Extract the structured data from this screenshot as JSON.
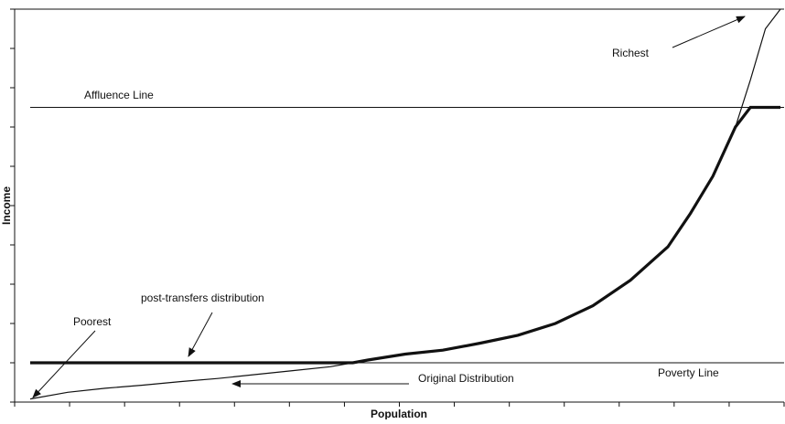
{
  "chart_data": {
    "type": "line",
    "xlabel": "Population",
    "ylabel": "Income",
    "xlim": [
      0,
      1
    ],
    "ylim": [
      0,
      10
    ],
    "x_ticks": [
      0,
      0.0714,
      0.1429,
      0.2143,
      0.2857,
      0.3571,
      0.4286,
      0.5,
      0.5714,
      0.6429,
      0.7143,
      0.7857,
      0.8571,
      0.9286,
      1.0
    ],
    "y_ticks": [
      0,
      1,
      2,
      3,
      4,
      5,
      6,
      7,
      8,
      9,
      10
    ],
    "grid": false,
    "legend": "none",
    "reference_lines": [
      {
        "label": "Affluence Line",
        "y": 7.5
      },
      {
        "label": "Poverty Line",
        "y": 1.0
      }
    ],
    "series": [
      {
        "name": "Original Distribution",
        "style": "thin",
        "color": "#111111",
        "x": [
          0.0,
          0.05,
          0.1,
          0.15,
          0.2,
          0.25,
          0.3,
          0.35,
          0.4,
          0.43,
          0.45,
          0.5,
          0.55,
          0.6,
          0.65,
          0.7,
          0.75,
          0.8,
          0.85,
          0.88,
          0.91,
          0.94,
          0.96,
          0.98,
          1.0
        ],
        "y": [
          0.08,
          0.25,
          0.35,
          0.43,
          0.52,
          0.6,
          0.7,
          0.8,
          0.9,
          1.0,
          1.07,
          1.22,
          1.32,
          1.5,
          1.7,
          2.0,
          2.45,
          3.1,
          3.95,
          4.8,
          5.75,
          7.0,
          8.2,
          9.5,
          10.0
        ]
      },
      {
        "name": "post-transfers distribution",
        "style": "thick",
        "color": "#111111",
        "x": [
          0.0,
          0.1,
          0.2,
          0.3,
          0.43,
          0.45,
          0.5,
          0.55,
          0.6,
          0.65,
          0.7,
          0.75,
          0.8,
          0.85,
          0.88,
          0.91,
          0.94,
          0.96,
          0.97,
          1.0
        ],
        "y": [
          1.0,
          1.0,
          1.0,
          1.0,
          1.0,
          1.07,
          1.22,
          1.32,
          1.5,
          1.7,
          2.0,
          2.45,
          3.1,
          3.95,
          4.8,
          5.75,
          7.0,
          7.5,
          7.5,
          7.5
        ]
      }
    ],
    "annotations": [
      {
        "id": "richest",
        "text": "Richest"
      },
      {
        "id": "poorest",
        "text": "Poorest"
      },
      {
        "id": "post",
        "text": "post-transfers distribution"
      },
      {
        "id": "original",
        "text": "Original Distribution"
      },
      {
        "id": "affluence",
        "text": "Affluence Line"
      },
      {
        "id": "poverty",
        "text": "Poverty Line"
      }
    ]
  }
}
